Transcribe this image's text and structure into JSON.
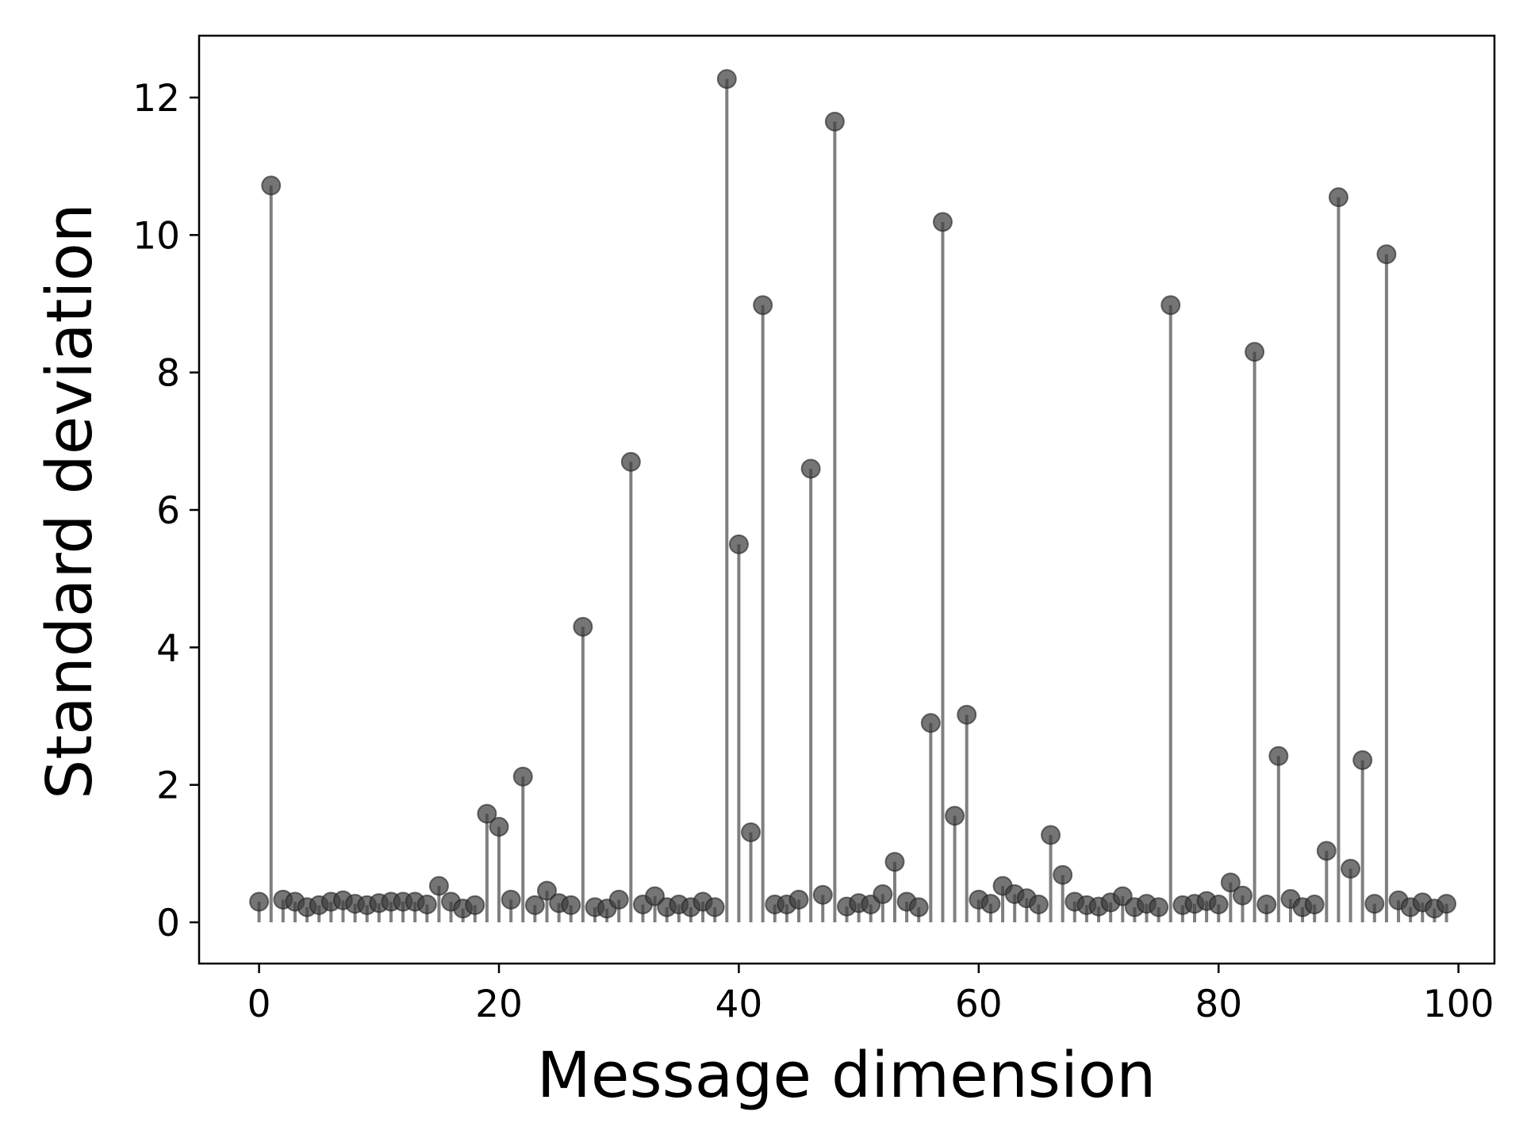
{
  "chart_data": {
    "type": "stem",
    "xlabel": "Message dimension",
    "ylabel": "Standard deviation",
    "xlim": [
      -5,
      103
    ],
    "ylim": [
      -0.6,
      12.9
    ],
    "x_ticks": [
      0,
      20,
      40,
      60,
      80,
      100
    ],
    "y_ticks": [
      0,
      2,
      4,
      6,
      8,
      10,
      12
    ],
    "grid": false,
    "legend": "none",
    "marker_color": "#404040",
    "stem_color": "#7f7f7f",
    "x": [
      0,
      1,
      2,
      3,
      4,
      5,
      6,
      7,
      8,
      9,
      10,
      11,
      12,
      13,
      14,
      15,
      16,
      17,
      18,
      19,
      20,
      21,
      22,
      23,
      24,
      25,
      26,
      27,
      28,
      29,
      30,
      31,
      32,
      33,
      34,
      35,
      36,
      37,
      38,
      39,
      40,
      41,
      42,
      43,
      44,
      45,
      46,
      47,
      48,
      49,
      50,
      51,
      52,
      53,
      54,
      55,
      56,
      57,
      58,
      59,
      60,
      61,
      62,
      63,
      64,
      65,
      66,
      67,
      68,
      69,
      70,
      71,
      72,
      73,
      74,
      75,
      76,
      77,
      78,
      79,
      80,
      81,
      82,
      83,
      84,
      85,
      86,
      87,
      88,
      89,
      90,
      91,
      92,
      93,
      94,
      95,
      96,
      97,
      98,
      99
    ],
    "values": [
      0.3,
      10.72,
      0.33,
      0.3,
      0.22,
      0.25,
      0.3,
      0.32,
      0.27,
      0.25,
      0.28,
      0.3,
      0.3,
      0.3,
      0.26,
      0.53,
      0.3,
      0.2,
      0.25,
      1.58,
      1.39,
      0.33,
      2.12,
      0.25,
      0.46,
      0.28,
      0.25,
      4.3,
      0.22,
      0.2,
      0.33,
      6.7,
      0.26,
      0.38,
      0.22,
      0.26,
      0.22,
      0.3,
      0.22,
      12.27,
      5.5,
      1.31,
      8.98,
      0.26,
      0.26,
      0.33,
      6.6,
      0.4,
      11.65,
      0.23,
      0.28,
      0.26,
      0.41,
      0.88,
      0.3,
      0.22,
      2.9,
      10.19,
      1.55,
      3.02,
      0.33,
      0.27,
      0.53,
      0.41,
      0.35,
      0.26,
      1.27,
      0.69,
      0.3,
      0.25,
      0.23,
      0.29,
      0.38,
      0.22,
      0.27,
      0.22,
      8.98,
      0.25,
      0.27,
      0.31,
      0.26,
      0.58,
      0.39,
      8.3,
      0.26,
      2.42,
      0.34,
      0.22,
      0.26,
      1.04,
      10.55,
      0.78,
      2.36,
      0.27,
      9.72,
      0.32,
      0.22,
      0.29,
      0.2,
      0.27
    ]
  }
}
